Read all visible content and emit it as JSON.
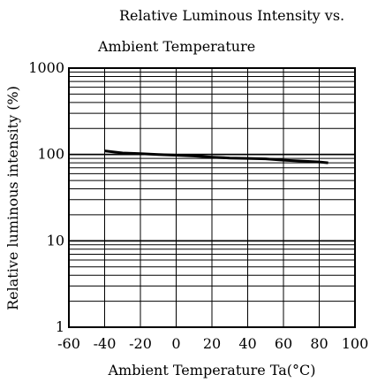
{
  "chart_data": {
    "type": "line",
    "title_line1": "Relative Luminous Intensity   vs.",
    "title_line2": "Ambient Temperature",
    "xlabel": "Ambient Temperature Ta(°C)",
    "ylabel": "Relative luminous intensity (%)",
    "x_scale": "linear",
    "y_scale": "log",
    "xlim": [
      -60,
      100
    ],
    "ylim": [
      1,
      1000
    ],
    "x_ticks": [
      -60,
      -40,
      -20,
      0,
      20,
      40,
      60,
      80,
      100
    ],
    "x_tick_labels": [
      "-60",
      "-40",
      "-20",
      "0",
      "20",
      "40",
      "60",
      "80",
      "100"
    ],
    "y_ticks": [
      1,
      10,
      100,
      1000
    ],
    "y_tick_labels": [
      "1",
      "10",
      "100",
      "1000"
    ],
    "grid": true,
    "series": [
      {
        "x": [
          -40,
          -30,
          -20,
          -10,
          0,
          10,
          20,
          30,
          40,
          50,
          60,
          70,
          80,
          85
        ],
        "y": [
          110,
          104,
          102,
          100,
          98,
          96,
          93,
          91,
          90,
          89,
          86,
          84,
          82,
          80
        ],
        "color": "#000000"
      }
    ]
  }
}
